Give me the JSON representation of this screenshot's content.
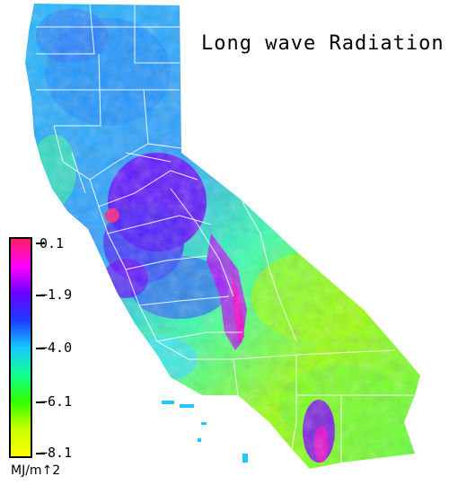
{
  "title": "Long wave Radiation",
  "legend": {
    "unit": "MJ/m↑2",
    "ticks": [
      "0.1",
      "−1.9",
      "−4.0",
      "−6.1",
      "−8.1"
    ],
    "colors": [
      "#ff2060",
      "#ff00ff",
      "#6a00ff",
      "#1a3cff",
      "#18c8ff",
      "#10ff90",
      "#32ff00",
      "#c8ff00",
      "#ffff00"
    ]
  },
  "palette": {
    "valley_purple": "#6a00ff",
    "coast_cyan": "#20b8ff",
    "desert_green": "#7cff10",
    "sierra_magenta": "#ff00cc",
    "boundary": "#ffffff"
  }
}
